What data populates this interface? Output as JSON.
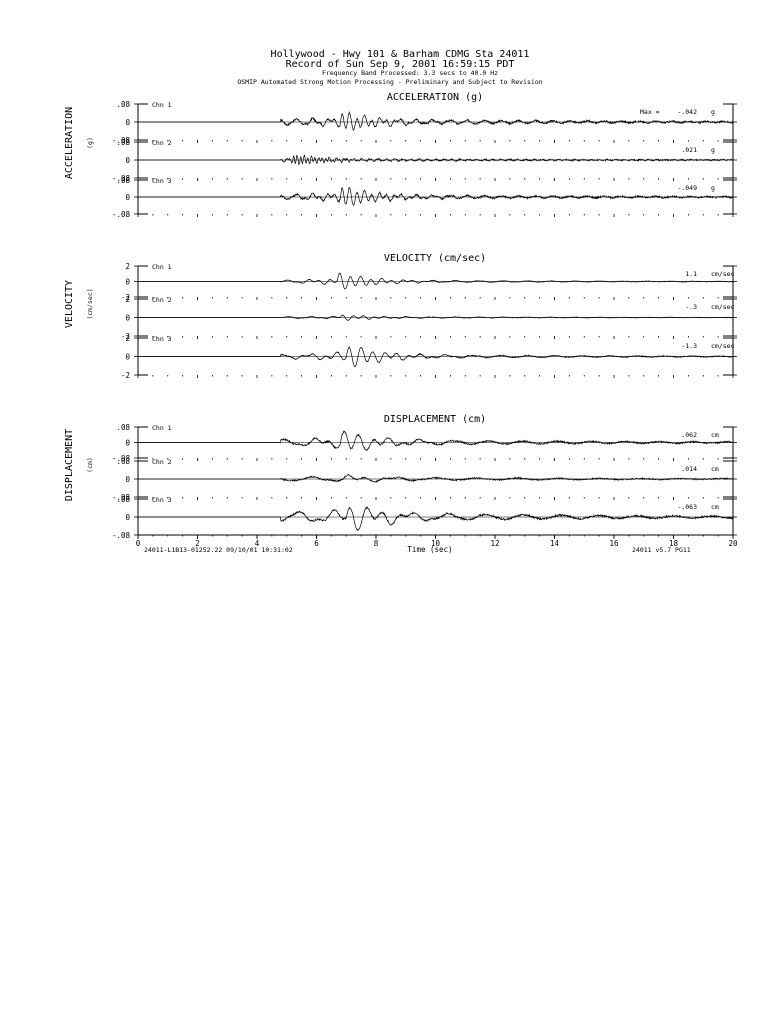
{
  "header": {
    "line1": "Hollywood - Hwy 101 & Barham    CDMG Sta 24011",
    "line2": "Record of Sun Sep  9, 2001 16:59:15 PDT",
    "line3": "Frequency Band Processed: 3.3 secs to 40.0 Hz",
    "line4": "OSMIP Automated Strong Motion Processing - Preliminary and Subject to Revision"
  },
  "footer": {
    "left": "24011-L1B13-01252.22  09/10/01 10:31:02",
    "right": "24011  v5.7  PG11"
  },
  "chart_data": [
    {
      "type": "line",
      "title": "ACCELERATION (g)",
      "ylabel": "ACCELERATION",
      "yunit": "(g)",
      "xlim": [
        0,
        20
      ],
      "xticks": [
        "0",
        "2",
        "4",
        "6",
        "8",
        "10",
        "12",
        "14",
        "16",
        "18",
        "20"
      ],
      "yticks": [
        ".08",
        "0",
        "-.08"
      ],
      "ylim": [
        -0.08,
        0.08
      ],
      "max_label": "Max =",
      "series": [
        {
          "name": "Chn 1",
          "peak": "-.042",
          "unit": "g",
          "onset": 4.8,
          "mainshock": 6.8,
          "amp": 0.042,
          "period": 0.25,
          "coda": 0.012,
          "noise": 0.004
        },
        {
          "name": "Chn 2",
          "peak": ".021",
          "unit": "g",
          "onset": 4.8,
          "mainshock": 5.2,
          "amp": 0.021,
          "period": 0.12,
          "coda": 0.006,
          "noise": 0.003
        },
        {
          "name": "Chn 3",
          "peak": "-.049",
          "unit": "g",
          "onset": 4.8,
          "mainshock": 6.8,
          "amp": 0.049,
          "period": 0.25,
          "coda": 0.01,
          "noise": 0.004
        }
      ]
    },
    {
      "type": "line",
      "title": "VELOCITY (cm/sec)",
      "ylabel": "VELOCITY",
      "yunit": "(cm/sec)",
      "xlim": [
        0,
        20
      ],
      "xticks": [
        "0",
        "2",
        "4",
        "6",
        "8",
        "10",
        "12",
        "14",
        "16",
        "18",
        "20"
      ],
      "yticks": [
        "2",
        "0",
        "-2"
      ],
      "ylim": [
        -2,
        2
      ],
      "series": [
        {
          "name": "Chn 1",
          "peak": "1.1",
          "unit": "cm/sec",
          "onset": 4.8,
          "mainshock": 6.7,
          "amp": 1.1,
          "period": 0.35,
          "coda": 0.15,
          "noise": 0.04
        },
        {
          "name": "Chn 2",
          "peak": "-.3",
          "unit": "cm/sec",
          "onset": 4.8,
          "mainshock": 6.8,
          "amp": 0.3,
          "period": 0.35,
          "coda": 0.08,
          "noise": 0.03
        },
        {
          "name": "Chn 3",
          "peak": "-1.3",
          "unit": "cm/sec",
          "onset": 4.8,
          "mainshock": 7.0,
          "amp": 1.3,
          "period": 0.4,
          "coda": 0.2,
          "noise": 0.05
        }
      ]
    },
    {
      "type": "line",
      "title": "DISPLACEMENT (cm)",
      "ylabel": "DISPLACEMENT",
      "yunit": "(cm)",
      "xlabel": "Time (sec)",
      "xlim": [
        0,
        20
      ],
      "xticks": [
        "0",
        "2",
        "4",
        "6",
        "8",
        "10",
        "12",
        "14",
        "16",
        "18",
        "20"
      ],
      "yticks": [
        ".08",
        "0",
        "-.08"
      ],
      "ylim": [
        -0.08,
        0.08
      ],
      "series": [
        {
          "name": "Chn 1",
          "peak": ".062",
          "unit": "cm",
          "onset": 4.8,
          "mainshock": 6.8,
          "amp": 0.062,
          "period": 0.5,
          "coda": 0.015,
          "noise": 0.004
        },
        {
          "name": "Chn 2",
          "peak": ".014",
          "unit": "cm",
          "onset": 4.8,
          "mainshock": 6.9,
          "amp": 0.014,
          "period": 0.6,
          "coda": 0.008,
          "noise": 0.003
        },
        {
          "name": "Chn 3",
          "peak": "-.063",
          "unit": "cm",
          "onset": 4.8,
          "mainshock": 7.0,
          "amp": 0.063,
          "period": 0.55,
          "coda": 0.02,
          "noise": 0.004
        }
      ]
    }
  ]
}
